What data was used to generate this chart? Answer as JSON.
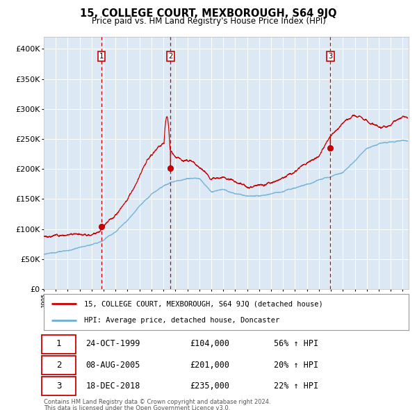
{
  "title": "15, COLLEGE COURT, MEXBOROUGH, S64 9JQ",
  "subtitle": "Price paid vs. HM Land Registry's House Price Index (HPI)",
  "legend_line1": "15, COLLEGE COURT, MEXBOROUGH, S64 9JQ (detached house)",
  "legend_line2": "HPI: Average price, detached house, Doncaster",
  "footnote1": "Contains HM Land Registry data © Crown copyright and database right 2024.",
  "footnote2": "This data is licensed under the Open Government Licence v3.0.",
  "sales": [
    {
      "num": 1,
      "date": "24-OCT-1999",
      "price": 104000,
      "pct": "56%",
      "x_year": 1999.81
    },
    {
      "num": 2,
      "date": "08-AUG-2005",
      "price": 201000,
      "pct": "20%",
      "x_year": 2005.6
    },
    {
      "num": 3,
      "date": "18-DEC-2018",
      "price": 235000,
      "pct": "22%",
      "x_year": 2018.96
    }
  ],
  "ylim": [
    0,
    420000
  ],
  "xlim_start": 1995.0,
  "xlim_end": 2025.5,
  "background_color": "#dce9f5",
  "grid_color": "#ffffff",
  "hpi_color": "#6baed6",
  "price_color": "#cc0000",
  "dashed_line_color": "#cc0000",
  "label_box_color": "#cc0000",
  "ytick_values": [
    0,
    50000,
    100000,
    150000,
    200000,
    250000,
    300000,
    350000,
    400000
  ],
  "hpi_base": {
    "1995": 58000,
    "1996": 60000,
    "1997": 63000,
    "1998": 67000,
    "1999": 72000,
    "2000": 80000,
    "2001": 93000,
    "2002": 115000,
    "2003": 140000,
    "2004": 160000,
    "2005": 172000,
    "2006": 180000,
    "2007": 185000,
    "2008": 183000,
    "2009": 162000,
    "2010": 168000,
    "2011": 163000,
    "2012": 158000,
    "2013": 160000,
    "2014": 163000,
    "2015": 167000,
    "2016": 172000,
    "2017": 180000,
    "2018": 188000,
    "2019": 193000,
    "2020": 200000,
    "2021": 220000,
    "2022": 240000,
    "2023": 248000,
    "2024": 252000,
    "2025": 255000
  },
  "red_base": {
    "1995": 88000,
    "1996": 90000,
    "1997": 93000,
    "1998": 96000,
    "1999": 100000,
    "2000": 115000,
    "2001": 135000,
    "2002": 165000,
    "2003": 200000,
    "2004": 235000,
    "2005": 255000,
    "2006": 230000,
    "2007": 225000,
    "2008": 215000,
    "2009": 195000,
    "2010": 205000,
    "2011": 200000,
    "2012": 195000,
    "2013": 197000,
    "2014": 200000,
    "2015": 205000,
    "2016": 210000,
    "2017": 220000,
    "2018": 235000,
    "2019": 270000,
    "2020": 295000,
    "2021": 310000,
    "2022": 305000,
    "2023": 295000,
    "2024": 300000,
    "2025": 310000
  }
}
